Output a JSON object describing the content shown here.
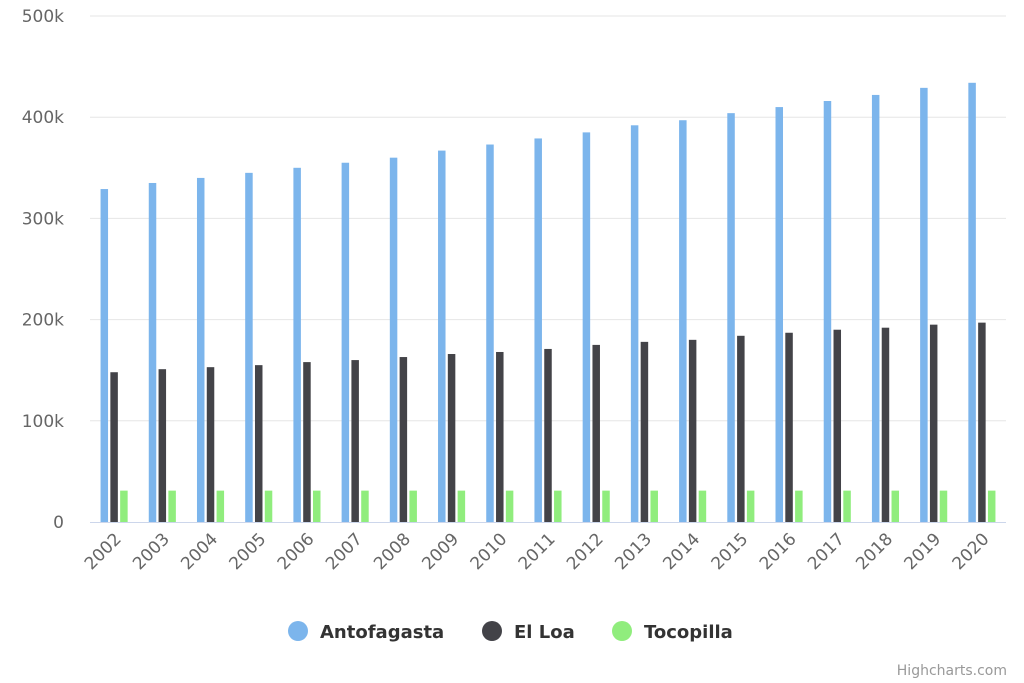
{
  "chart_data": {
    "type": "bar",
    "categories": [
      "2002",
      "2003",
      "2004",
      "2005",
      "2006",
      "2007",
      "2008",
      "2009",
      "2010",
      "2011",
      "2012",
      "2013",
      "2014",
      "2015",
      "2016",
      "2017",
      "2018",
      "2019",
      "2020"
    ],
    "series": [
      {
        "name": "Antofagasta",
        "color": "#7cb5ec",
        "values": [
          329000,
          335000,
          340000,
          345000,
          350000,
          355000,
          360000,
          367000,
          373000,
          379000,
          385000,
          392000,
          397000,
          404000,
          410000,
          416000,
          422000,
          429000,
          434000
        ]
      },
      {
        "name": "El Loa",
        "color": "#434348",
        "values": [
          148000,
          151000,
          153000,
          155000,
          158000,
          160000,
          163000,
          166000,
          168000,
          171000,
          175000,
          178000,
          180000,
          184000,
          187000,
          190000,
          192000,
          195000,
          197000
        ]
      },
      {
        "name": "Tocopilla",
        "color": "#90ed7d",
        "values": [
          31000,
          31000,
          31000,
          31000,
          31000,
          31000,
          31000,
          31000,
          31000,
          31000,
          31000,
          31000,
          31000,
          31000,
          31000,
          31000,
          31000,
          31000,
          31000
        ]
      }
    ],
    "ylim": [
      0,
      500000
    ],
    "yticks": [
      {
        "value": 0,
        "label": "0"
      },
      {
        "value": 100000,
        "label": "100k"
      },
      {
        "value": 200000,
        "label": "200k"
      },
      {
        "value": 300000,
        "label": "300k"
      },
      {
        "value": 400000,
        "label": "400k"
      },
      {
        "value": 500000,
        "label": "500k"
      }
    ],
    "grid": true,
    "legend_position": "bottom-center",
    "credits": "Highcharts.com"
  }
}
